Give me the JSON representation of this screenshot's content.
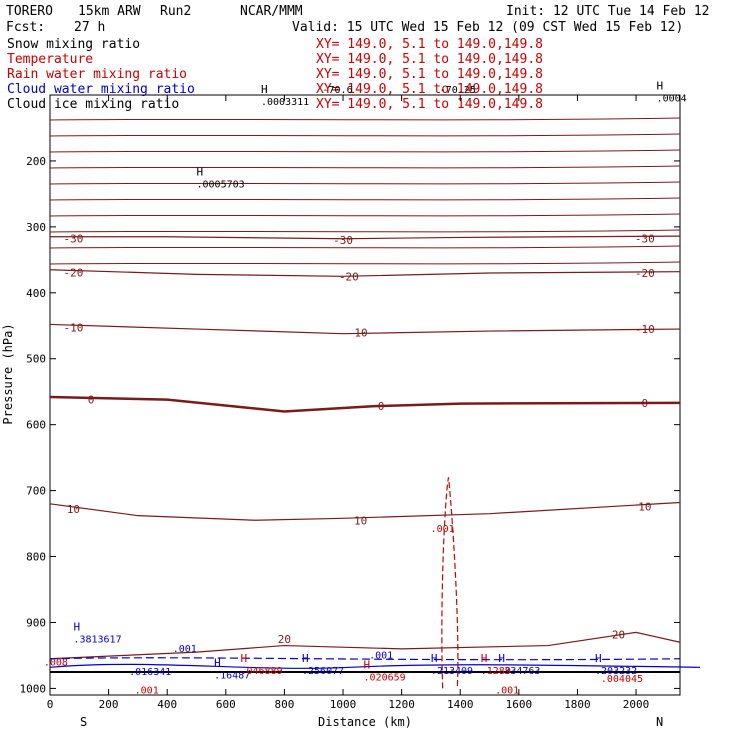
{
  "header": {
    "model": "TORERO",
    "resolution": "15km ARW",
    "run": "Run2",
    "org": "NCAR/MMM",
    "init": "Init: 12 UTC Tue 14 Feb 12",
    "fcst_label": "Fcst:",
    "fcst_value": "27 h",
    "valid": "Valid: 15 UTC Wed 15 Feb 12 (09 CST Wed 15 Feb 12)"
  },
  "fields": [
    {
      "name": "Snow mixing ratio",
      "color": "#000000",
      "xy": "XY= 149.0,   5.1 to 149.0,149.8"
    },
    {
      "name": "Temperature",
      "color": "#cc0000",
      "xy": "XY= 149.0,   5.1 to 149.0,149.8"
    },
    {
      "name": "Rain water mixing ratio",
      "color": "#cc0000",
      "xy": "XY= 149.0,   5.1 to 149.0,149.8"
    },
    {
      "name": "Cloud water mixing ratio",
      "color": "#0000cc",
      "xy": "XY= 149.0,   5.1 to 149.0,149.8"
    },
    {
      "name": "Cloud ice mixing ratio",
      "color": "#000000",
      "xy": "XY= 149.0,   5.1 to 149.0,149.8"
    }
  ],
  "chart_data": {
    "type": "contour cross-section",
    "xlabel": "Distance (km)",
    "ylabel": "Pressure (hPa)",
    "xlim": [
      0,
      2150
    ],
    "ylim": [
      1010,
      100
    ],
    "x_ticks": [
      0,
      200,
      400,
      600,
      800,
      1000,
      1200,
      1400,
      1600,
      1800,
      2000
    ],
    "x_tick_labels": [
      "0",
      "200",
      "400",
      "600",
      "800",
      "1000",
      "1200",
      "1400",
      "1600",
      "1800",
      "2000"
    ],
    "y_ticks": [
      200,
      300,
      400,
      500,
      600,
      700,
      800,
      900,
      1000
    ],
    "y_tick_labels": [
      "200",
      "300",
      "400",
      "500",
      "600",
      "700",
      "800",
      "900",
      "1000"
    ],
    "endpoint_left": "S",
    "endpoint_right": "N",
    "temperature_contours": [
      {
        "label": "-30",
        "points": [
          [
            0,
            315
          ],
          [
            400,
            315
          ],
          [
            1000,
            318
          ],
          [
            1400,
            316
          ],
          [
            2150,
            314
          ]
        ],
        "labels_at": [
          [
            80,
            318
          ],
          [
            1000,
            320
          ],
          [
            2030,
            318
          ]
        ]
      },
      {
        "label": "-20",
        "points": [
          [
            0,
            365
          ],
          [
            500,
            372
          ],
          [
            1000,
            375
          ],
          [
            1500,
            370
          ],
          [
            2150,
            368
          ]
        ],
        "labels_at": [
          [
            80,
            369
          ],
          [
            1020,
            375
          ],
          [
            2030,
            370
          ]
        ]
      },
      {
        "label": "-10",
        "points": [
          [
            0,
            448
          ],
          [
            500,
            455
          ],
          [
            1000,
            462
          ],
          [
            1500,
            458
          ],
          [
            2150,
            455
          ]
        ],
        "labels_at": [
          [
            80,
            453
          ],
          [
            1050,
            460
          ],
          [
            2030,
            455
          ]
        ]
      },
      {
        "label": "0",
        "points": [
          [
            0,
            558
          ],
          [
            400,
            562
          ],
          [
            800,
            580
          ],
          [
            1100,
            572
          ],
          [
            1400,
            568
          ],
          [
            2150,
            567
          ]
        ],
        "labels_at": [
          [
            140,
            562
          ],
          [
            1130,
            572
          ],
          [
            2030,
            567
          ]
        ]
      },
      {
        "label": "10",
        "points": [
          [
            0,
            720
          ],
          [
            300,
            738
          ],
          [
            700,
            745
          ],
          [
            1000,
            742
          ],
          [
            1500,
            735
          ],
          [
            2150,
            718
          ]
        ],
        "labels_at": [
          [
            80,
            728
          ],
          [
            1060,
            745
          ],
          [
            2030,
            724
          ]
        ]
      },
      {
        "label": "20",
        "points": [
          [
            0,
            955
          ],
          [
            500,
            945
          ],
          [
            800,
            935
          ],
          [
            1200,
            940
          ],
          [
            1700,
            935
          ],
          [
            2000,
            915
          ],
          [
            2150,
            930
          ]
        ],
        "labels_at": [
          [
            800,
            925
          ],
          [
            1940,
            918
          ]
        ]
      }
    ],
    "maxima_labels": [
      {
        "field": "Snow mixing ratio",
        "H": true,
        "text": ".0003311",
        "x": 720,
        "p": 115
      },
      {
        "field": "Snow mixing ratio",
        "H": true,
        "text": ".0005703",
        "x": 500,
        "p": 240
      },
      {
        "field": "Cloud ice mixing ratio",
        "H": true,
        "text": ".0004",
        "x": 2070,
        "p": 110
      },
      {
        "field": "Cloud water mixing ratio",
        "H": true,
        "text": ".3813617",
        "x": 80,
        "p": 930
      },
      {
        "field": "Cloud water mixing ratio",
        "H": false,
        "text": ".016341",
        "x": 270,
        "p": 980
      },
      {
        "field": "Cloud water mixing ratio",
        "H": true,
        "text": ".16487",
        "x": 560,
        "p": 985
      },
      {
        "field": "Cloud water mixing ratio",
        "H": true,
        "text": ".256077",
        "x": 860,
        "p": 978
      },
      {
        "field": "Cloud water mixing ratio",
        "H": true,
        "text": ".213409",
        "x": 1300,
        "p": 978
      },
      {
        "field": "Cloud water mixing ratio",
        "H": true,
        "text": ".334763",
        "x": 1530,
        "p": 978
      },
      {
        "field": "Cloud water mixing ratio",
        "H": true,
        "text": ".203232",
        "x": 1860,
        "p": 978
      },
      {
        "field": "Rain water mixing ratio",
        "H": true,
        "text": ".046889",
        "x": 650,
        "p": 978
      },
      {
        "field": "Rain water mixing ratio",
        "H": true,
        "text": ".020659",
        "x": 1070,
        "p": 988
      },
      {
        "field": "Rain water mixing ratio",
        "H": true,
        "text": ".1289",
        "x": 1470,
        "p": 978
      },
      {
        "field": "Rain water mixing ratio",
        "H": false,
        "text": ".004045",
        "x": 1880,
        "p": 990
      }
    ],
    "contour_labels": [
      {
        "field": "Cloud water mixing ratio",
        "text": ".001",
        "x": 460,
        "p": 945
      },
      {
        "field": "Cloud water mixing ratio",
        "text": ".001",
        "x": 1130,
        "p": 955
      },
      {
        "field": "Rain water mixing ratio",
        "text": ".001",
        "x": 1340,
        "p": 763
      },
      {
        "field": "Rain water mixing ratio",
        "text": ".001",
        "x": 330,
        "p": 1008
      },
      {
        "field": "Rain water mixing ratio",
        "text": ".001",
        "x": 1560,
        "p": 1008
      },
      {
        "field": "Rain water mixing ratio",
        "text": ".008",
        "x": 20,
        "p": 965
      }
    ],
    "top_overlap_labels": [
      {
        "text": "-70.6",
        "x": 930,
        "p": 100
      },
      {
        "text": "-70.25",
        "x": 1330,
        "p": 100
      }
    ]
  }
}
